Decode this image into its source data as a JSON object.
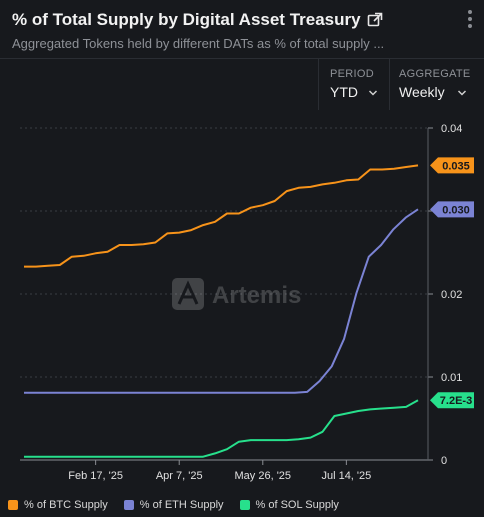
{
  "header": {
    "title": "% of Total Supply by Digital Asset Treasury",
    "subtitle": "Aggregated Tokens held by different DATs as % of total supply ..."
  },
  "controls": {
    "period": {
      "label": "PERIOD",
      "value": "YTD"
    },
    "aggregate": {
      "label": "AGGREGATE",
      "value": "Weekly"
    }
  },
  "watermark": "Artemis",
  "colors": {
    "btc": "#f7931a",
    "eth": "#7b83d4",
    "sol": "#27e08c",
    "grid": "#3a3d44",
    "bg": "#17191d"
  },
  "chart_data": {
    "type": "line",
    "ylim": [
      0,
      0.04
    ],
    "y_ticks": [
      "0",
      "0.01",
      "0.02",
      "0.03",
      "0.04"
    ],
    "x_ticks": [
      "Feb 17, '25",
      "Apr 7, '25",
      "May 26, '25",
      "Jul 14, '25"
    ],
    "x_tick_weeks": [
      6,
      13,
      20,
      27
    ],
    "series": [
      {
        "name": "% of BTC Supply",
        "color": "#f7931a",
        "end_label": "0.035",
        "values": [
          0.0233,
          0.0233,
          0.0234,
          0.0235,
          0.0245,
          0.0246,
          0.0249,
          0.0251,
          0.0259,
          0.0259,
          0.026,
          0.0262,
          0.0273,
          0.0274,
          0.0277,
          0.0283,
          0.0287,
          0.0297,
          0.0297,
          0.0304,
          0.0307,
          0.0312,
          0.0324,
          0.0328,
          0.0329,
          0.0332,
          0.0334,
          0.0337,
          0.0338,
          0.035,
          0.035,
          0.0351,
          0.0353,
          0.0355
        ]
      },
      {
        "name": "% of ETH Supply",
        "color": "#7b83d4",
        "end_label": "0.030",
        "values": [
          0.0081,
          0.0081,
          0.0081,
          0.0081,
          0.0081,
          0.0081,
          0.0081,
          0.0081,
          0.0081,
          0.0081,
          0.0081,
          0.0081,
          0.0081,
          0.0081,
          0.0081,
          0.0081,
          0.0081,
          0.0081,
          0.0081,
          0.0081,
          0.0081,
          0.0081,
          0.0081,
          0.0082,
          0.0095,
          0.0113,
          0.0146,
          0.0201,
          0.0245,
          0.0259,
          0.0278,
          0.0292,
          0.0302
        ]
      },
      {
        "name": "% of SOL Supply",
        "color": "#27e08c",
        "end_label": "7.2E-3",
        "values": [
          0.0004,
          0.0004,
          0.0004,
          0.0004,
          0.0004,
          0.0004,
          0.0004,
          0.0004,
          0.0004,
          0.0004,
          0.0004,
          0.0004,
          0.0004,
          0.0004,
          0.0004,
          0.0004,
          0.0008,
          0.0013,
          0.0022,
          0.0024,
          0.0024,
          0.0024,
          0.0024,
          0.0025,
          0.0027,
          0.0034,
          0.0053,
          0.0056,
          0.0059,
          0.0061,
          0.0062,
          0.0063,
          0.0064,
          0.0072
        ]
      }
    ]
  }
}
